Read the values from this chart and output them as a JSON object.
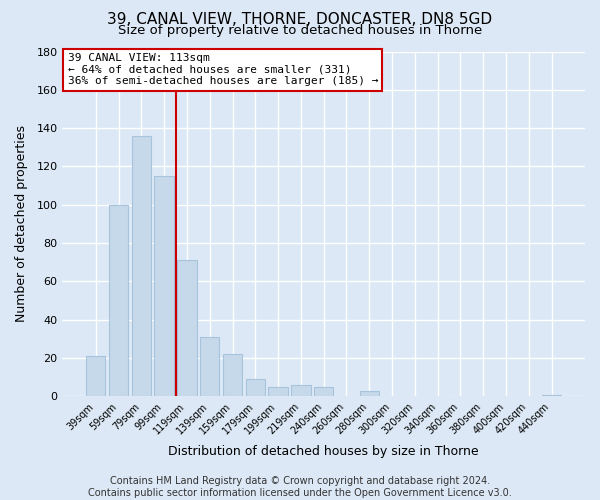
{
  "title": "39, CANAL VIEW, THORNE, DONCASTER, DN8 5GD",
  "subtitle": "Size of property relative to detached houses in Thorne",
  "xlabel": "Distribution of detached houses by size in Thorne",
  "ylabel": "Number of detached properties",
  "bar_labels": [
    "39sqm",
    "59sqm",
    "79sqm",
    "99sqm",
    "119sqm",
    "139sqm",
    "159sqm",
    "179sqm",
    "199sqm",
    "219sqm",
    "240sqm",
    "260sqm",
    "280sqm",
    "300sqm",
    "320sqm",
    "340sqm",
    "360sqm",
    "380sqm",
    "400sqm",
    "420sqm",
    "440sqm"
  ],
  "bar_values": [
    21,
    100,
    136,
    115,
    71,
    31,
    22,
    9,
    5,
    6,
    5,
    0,
    3,
    0,
    0,
    0,
    0,
    0,
    0,
    0,
    1
  ],
  "bar_color": "#c5d9ea",
  "bar_edge_color": "#a8c4dc",
  "vline_x": 3.5,
  "vline_color": "#cc0000",
  "annotation_line1": "39 CANAL VIEW: 113sqm",
  "annotation_line2": "← 64% of detached houses are smaller (331)",
  "annotation_line3": "36% of semi-detached houses are larger (185) →",
  "annotation_box_color": "#ffffff",
  "annotation_box_edge": "#cc0000",
  "ylim": [
    0,
    180
  ],
  "yticks": [
    0,
    20,
    40,
    60,
    80,
    100,
    120,
    140,
    160,
    180
  ],
  "footer": "Contains HM Land Registry data © Crown copyright and database right 2024.\nContains public sector information licensed under the Open Government Licence v3.0.",
  "background_color": "#dce8f5",
  "plot_background": "#dce8f5",
  "grid_color": "#ffffff",
  "title_fontsize": 11,
  "subtitle_fontsize": 9.5,
  "footer_fontsize": 7
}
